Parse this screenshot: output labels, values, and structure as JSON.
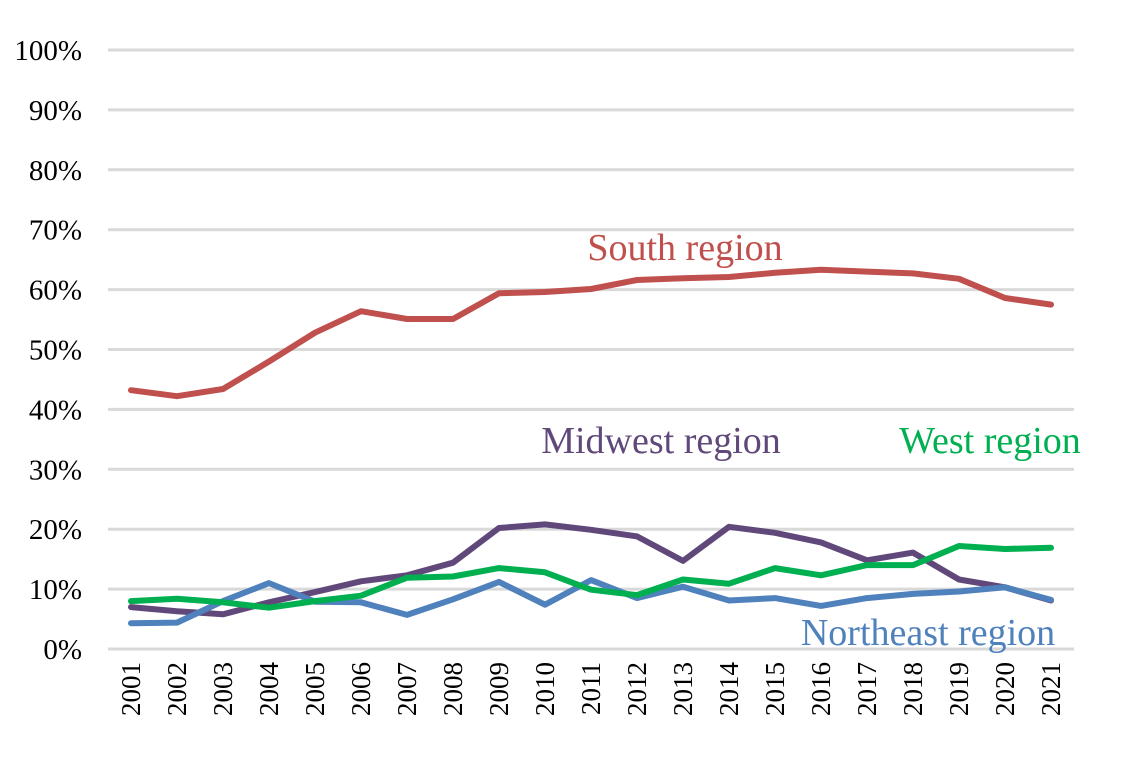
{
  "chart_data": {
    "type": "line",
    "categories": [
      "2001",
      "2002",
      "2003",
      "2004",
      "2005",
      "2006",
      "2007",
      "2008",
      "2009",
      "2010",
      "2011",
      "2012",
      "2013",
      "2014",
      "2015",
      "2016",
      "2017",
      "2018",
      "2019",
      "2020",
      "2021"
    ],
    "ylim": [
      0,
      100
    ],
    "yticks": [
      "0%",
      "10%",
      "20%",
      "30%",
      "40%",
      "50%",
      "60%",
      "70%",
      "80%",
      "90%",
      "100%"
    ],
    "grid": true,
    "series": [
      {
        "name": "South region",
        "color": "#c0504d",
        "values": [
          43.2,
          42.2,
          43.4,
          48.0,
          52.8,
          56.4,
          55.1,
          55.1,
          59.4,
          59.6,
          60.1,
          61.6,
          61.9,
          62.1,
          62.8,
          63.3,
          63.0,
          62.7,
          61.8,
          58.6,
          57.5
        ]
      },
      {
        "name": "Midwest region",
        "color": "#60497a",
        "values": [
          7.0,
          6.3,
          5.8,
          7.8,
          9.5,
          11.3,
          12.3,
          14.4,
          20.2,
          20.8,
          19.9,
          18.8,
          14.7,
          20.4,
          19.4,
          17.8,
          14.8,
          16.1,
          11.6,
          10.3,
          8.1
        ]
      },
      {
        "name": "West region",
        "color": "#00b050",
        "values": [
          8.0,
          8.4,
          7.8,
          6.9,
          8.0,
          8.9,
          11.9,
          12.1,
          13.5,
          12.8,
          9.9,
          9.0,
          11.6,
          10.9,
          13.5,
          12.3,
          14.0,
          14.0,
          17.2,
          16.7,
          16.9
        ]
      },
      {
        "name": "Northeast region",
        "color": "#4f81bd",
        "values": [
          4.3,
          4.4,
          8.0,
          11.0,
          7.9,
          7.8,
          5.7,
          8.3,
          11.2,
          7.4,
          11.5,
          8.5,
          10.4,
          8.1,
          8.5,
          7.2,
          8.5,
          9.2,
          9.6,
          10.3,
          8.2
        ]
      }
    ]
  }
}
